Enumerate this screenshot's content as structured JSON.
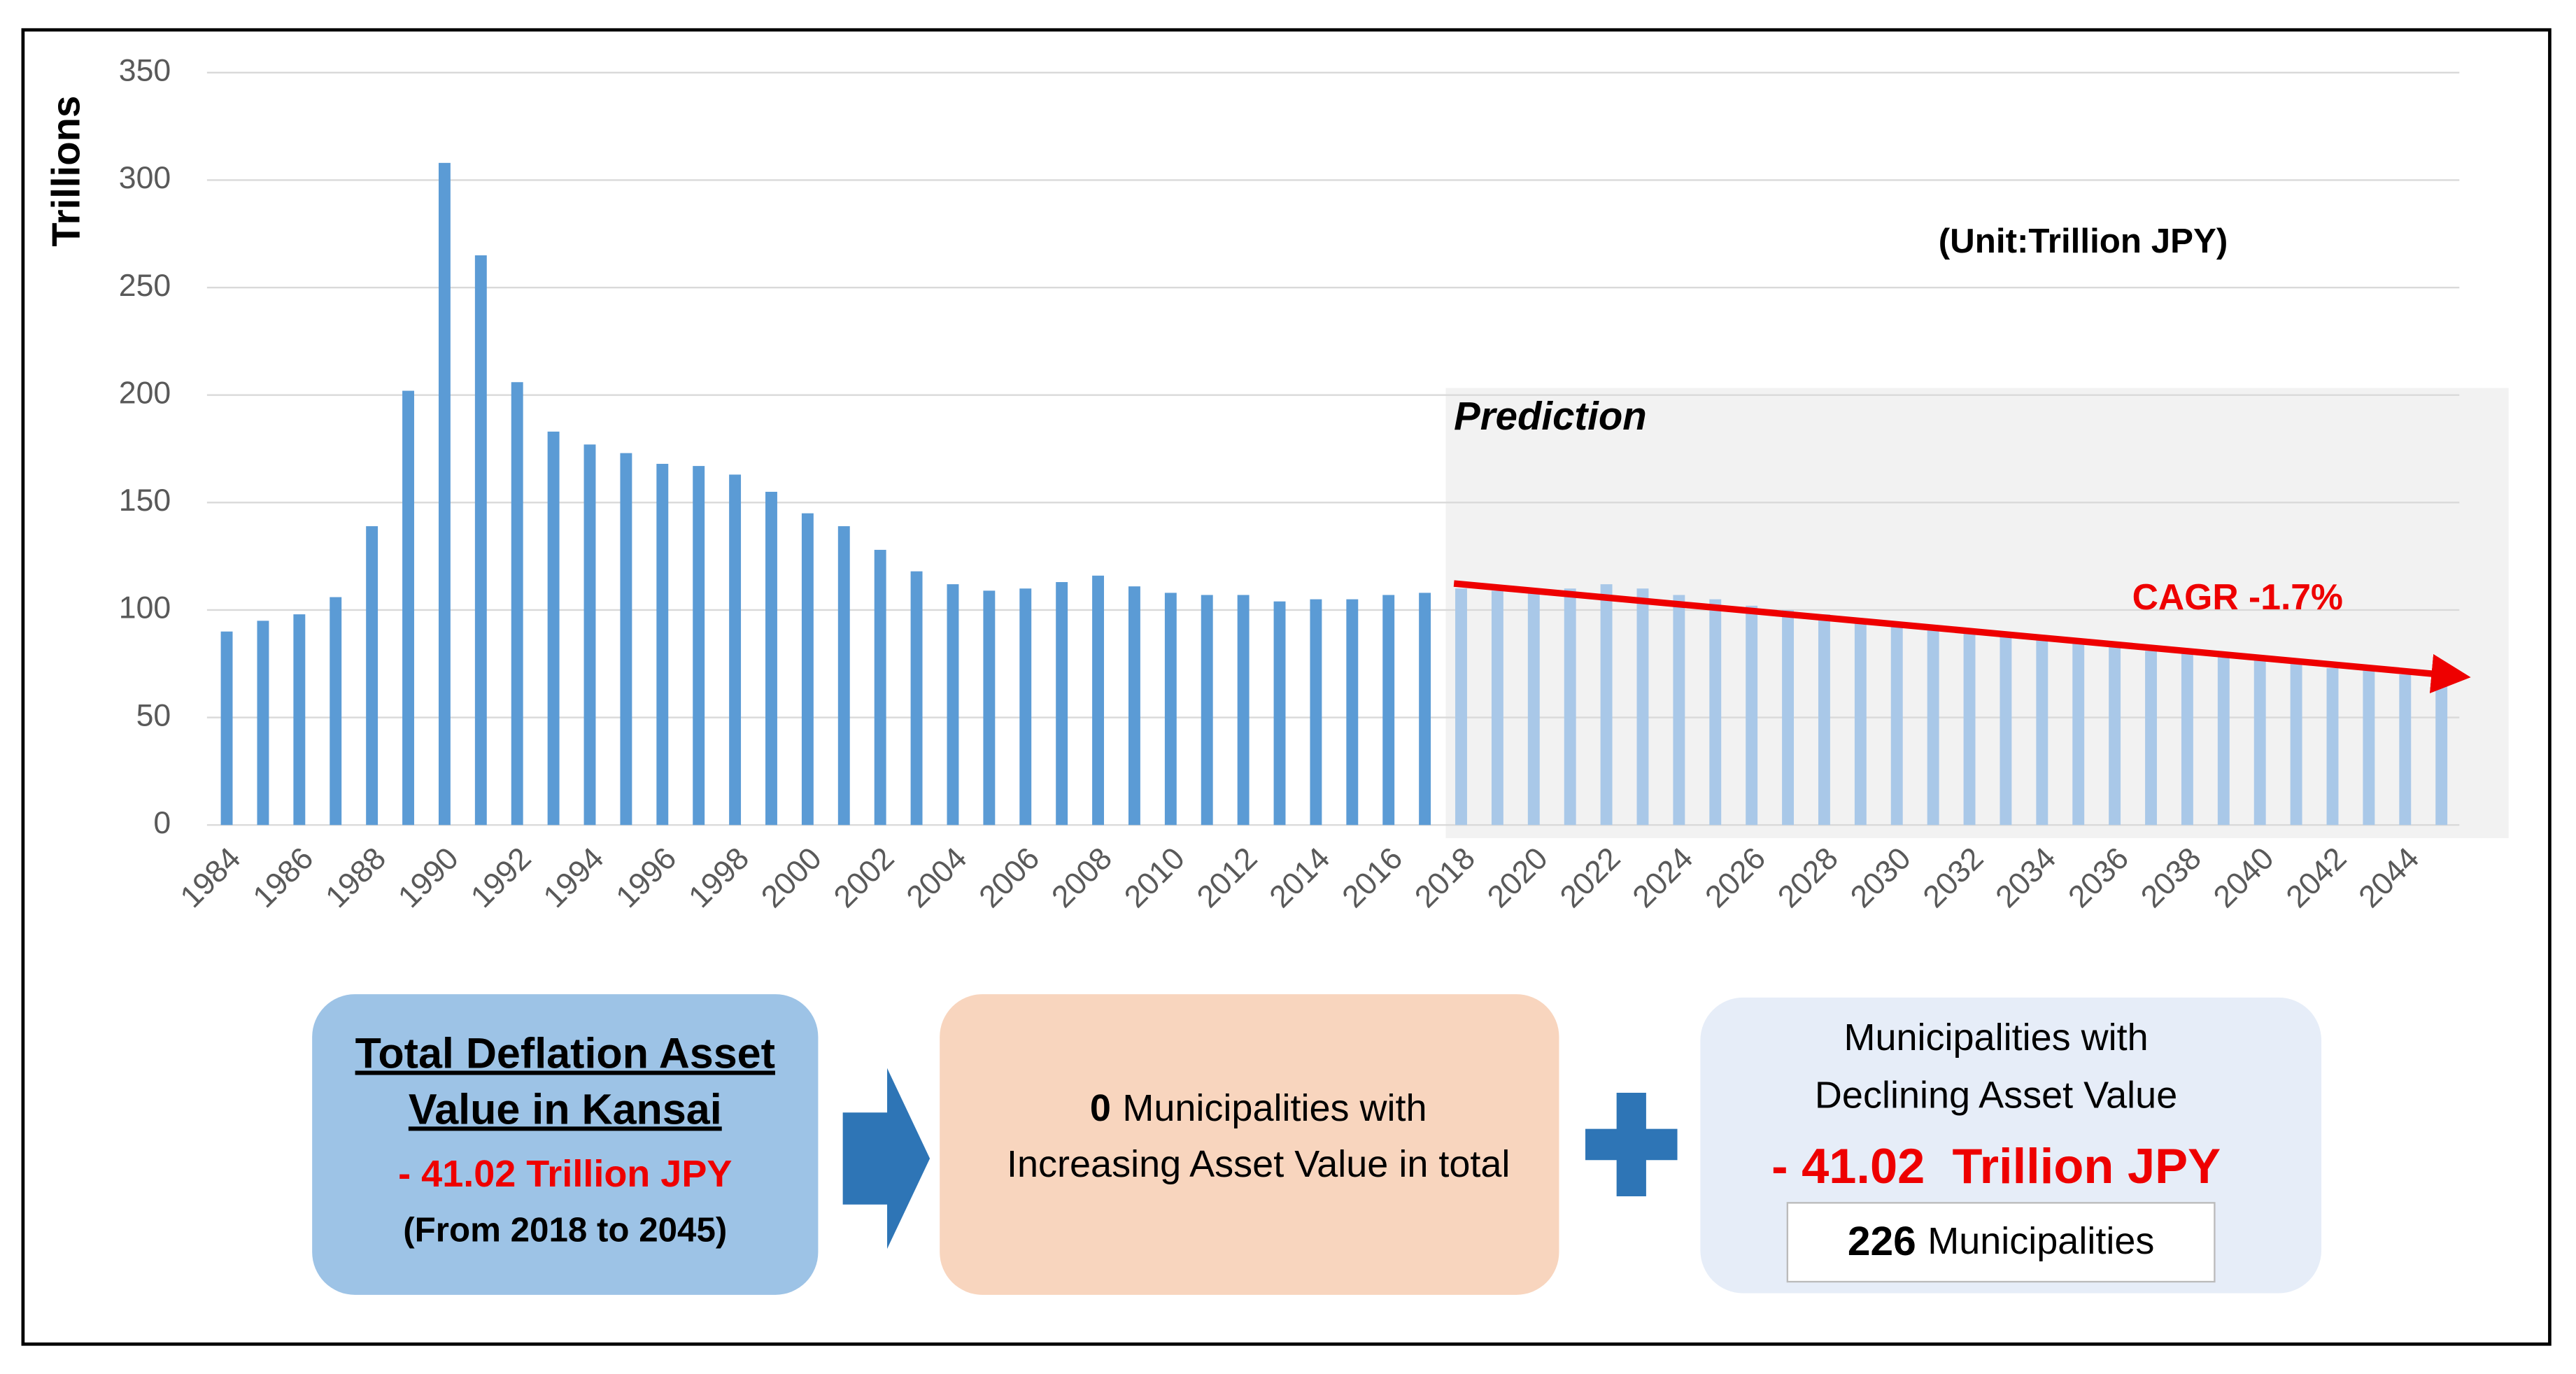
{
  "chart_data": {
    "type": "bar",
    "y_label": "Trillions",
    "unit_note": "(Unit:Trillion JPY)",
    "prediction_label": "Prediction",
    "trend_label": "CAGR -1.7%",
    "categories": [
      "1984",
      null,
      "1986",
      null,
      "1988",
      null,
      "1990",
      null,
      "1992",
      null,
      "1994",
      null,
      "1996",
      null,
      "1998",
      null,
      "2000",
      null,
      "2002",
      null,
      "2004",
      null,
      "2006",
      null,
      "2008",
      null,
      "2010",
      null,
      "2012",
      null,
      "2014",
      null,
      "2016",
      null,
      "2018",
      null,
      "2020",
      null,
      "2022",
      null,
      "2024",
      null,
      "2026",
      null,
      "2028",
      null,
      "2030",
      null,
      "2032",
      null,
      "2034",
      null,
      "2036",
      null,
      "2038",
      null,
      "2040",
      null,
      "2042",
      null,
      "2044",
      null
    ],
    "series": [
      {
        "color": "#5b9bd5",
        "values": [
          90,
          95,
          98,
          106,
          139,
          202,
          308,
          265,
          206,
          183,
          177,
          173,
          168,
          167,
          163,
          155,
          145,
          139,
          128,
          118,
          112,
          109,
          110,
          113,
          116,
          111,
          108,
          107,
          107,
          104,
          105,
          105,
          107,
          108,
          null,
          null,
          null,
          null,
          null,
          null,
          null,
          null,
          null,
          null,
          null,
          null,
          null,
          null,
          null,
          null,
          null,
          null,
          null,
          null,
          null,
          null,
          null,
          null,
          null,
          null,
          null,
          null
        ]
      },
      {
        "color": "#a9c8e8",
        "values": [
          null,
          null,
          null,
          null,
          null,
          null,
          null,
          null,
          null,
          null,
          null,
          null,
          null,
          null,
          null,
          null,
          null,
          null,
          null,
          null,
          null,
          null,
          null,
          null,
          null,
          null,
          null,
          null,
          null,
          null,
          null,
          null,
          null,
          null,
          110,
          109,
          108,
          110,
          112,
          110,
          107,
          105,
          102,
          100,
          98,
          96,
          94,
          92,
          90,
          88,
          87,
          85,
          83,
          81,
          80,
          78,
          77,
          75,
          73,
          72,
          70,
          68
        ]
      }
    ],
    "ylim": [
      0,
      350
    ],
    "yticks": [
      0,
      50,
      100,
      150,
      200,
      250,
      300,
      350
    ],
    "grid": true
  },
  "panels": {
    "total": {
      "title_lines": [
        "Total Deflation Asset",
        "Value in Kansai"
      ],
      "amount": "- 41.02 Trillion JPY",
      "period": "(From 2018 to 2045)"
    },
    "increasing": {
      "count": "0",
      "lines": [
        "Municipalities with",
        "Increasing Asset Value in total"
      ]
    },
    "declining": {
      "lines": [
        "Municipalities with",
        "Declining Asset Value"
      ],
      "amount": "- 41.02  Trillion JPY",
      "count": "226",
      "count_label": "Municipalities"
    }
  }
}
